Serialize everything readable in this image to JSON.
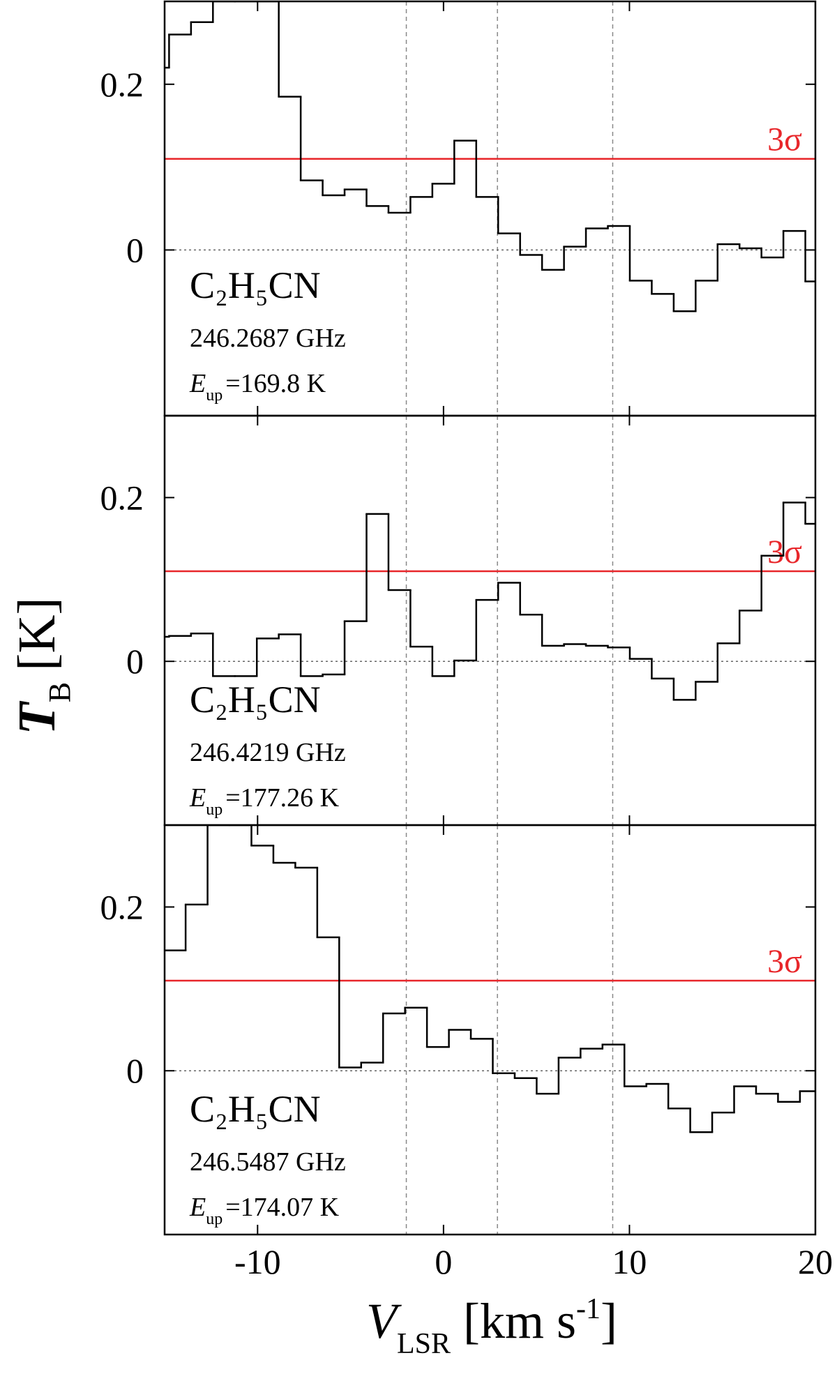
{
  "chart_data": {
    "type": "step",
    "x_label": {
      "symbol": "V",
      "sub": "LSR",
      "text": "[km s",
      "sup": "-1",
      "end": "]"
    },
    "y_label": {
      "symbol": "T",
      "sub": "B",
      "text": "[K]"
    },
    "xlim": [
      -15,
      20
    ],
    "xticks": [
      -10,
      0,
      10,
      20
    ],
    "panels": [
      {
        "species": "C₂H₅CN",
        "frequency": "246.2687 GHz",
        "energy": {
          "symbol": "E",
          "sub": "up",
          "text": "=169.8 K"
        },
        "color": "#000000",
        "bins": [
          -15,
          -14.76,
          -13.58,
          -12.4,
          -11.22,
          -10.04,
          -8.86,
          -7.68,
          -6.5,
          -5.32,
          -4.14,
          -2.96,
          -1.78,
          -0.6,
          0.58,
          1.76,
          2.94,
          4.12,
          5.3,
          6.48,
          7.66,
          8.84,
          10.02,
          11.2,
          12.38,
          13.56,
          14.74,
          15.92,
          17.1,
          18.28,
          19.46,
          20
        ],
        "values": [
          0.22,
          0.26,
          0.275,
          0.3,
          0.3,
          0.3,
          0.185,
          0.084,
          0.066,
          0.073,
          0.053,
          0.045,
          0.064,
          0.08,
          0.132,
          0.064,
          0.02,
          -0.006,
          -0.024,
          0.004,
          0.026,
          0.029,
          -0.037,
          -0.053,
          -0.074,
          -0.037,
          0.007,
          0.002,
          -0.009,
          0.023,
          -0.038
        ],
        "ylim": [
          -0.2,
          0.3
        ],
        "yticks": [
          0,
          0.2
        ],
        "threshold": 0.11,
        "threshold_label": "3σ",
        "threshold_color": "#e8262a",
        "vlines": [
          -2,
          2.9,
          9.1
        ],
        "zero_line": 0
      },
      {
        "species": "C₂H₅CN",
        "frequency": "246.4219 GHz",
        "energy": {
          "symbol": "E",
          "sub": "up",
          "text": "=177.26 K"
        },
        "color": "#000000",
        "bins": [
          -15,
          -14.76,
          -13.58,
          -12.4,
          -11.22,
          -10.04,
          -8.86,
          -7.68,
          -6.5,
          -5.32,
          -4.14,
          -2.96,
          -1.78,
          -0.6,
          0.58,
          1.76,
          2.94,
          4.12,
          5.3,
          6.48,
          7.66,
          8.84,
          10.02,
          11.2,
          12.38,
          13.56,
          14.74,
          15.92,
          17.1,
          18.28,
          19.46,
          20
        ],
        "values": [
          0.03,
          0.031,
          0.034,
          -0.018,
          -0.018,
          0.028,
          0.033,
          -0.018,
          -0.016,
          0.049,
          0.18,
          0.087,
          0.018,
          -0.018,
          0.001,
          0.075,
          0.096,
          0.057,
          0.019,
          0.021,
          0.019,
          0.017,
          0.003,
          -0.021,
          -0.047,
          -0.025,
          0.022,
          0.062,
          0.129,
          0.194,
          0.168
        ],
        "ylim": [
          -0.2,
          0.3
        ],
        "yticks": [
          0,
          0.2
        ],
        "threshold": 0.11,
        "threshold_label": "3σ",
        "threshold_color": "#e8262a",
        "vlines": [
          -2,
          2.9,
          9.1
        ],
        "zero_line": 0
      },
      {
        "species": "C₂H₅CN",
        "frequency": "246.5487 GHz",
        "energy": {
          "symbol": "E",
          "sub": "up",
          "text": "=174.07 K"
        },
        "color": "#000000",
        "bins": [
          -15,
          -13.87,
          -12.69,
          -11.51,
          -10.33,
          -9.15,
          -7.97,
          -6.79,
          -5.61,
          -4.43,
          -3.25,
          -2.07,
          -0.89,
          0.29,
          1.47,
          2.65,
          3.83,
          5.01,
          6.19,
          7.37,
          8.55,
          9.73,
          10.91,
          12.09,
          13.27,
          14.45,
          15.63,
          16.81,
          17.99,
          19.17,
          20
        ],
        "values": [
          0.147,
          0.203,
          0.3,
          0.3,
          0.275,
          0.254,
          0.248,
          0.163,
          0.004,
          0.01,
          0.07,
          0.077,
          0.029,
          0.05,
          0.039,
          -0.003,
          -0.009,
          -0.028,
          0.016,
          0.027,
          0.032,
          -0.019,
          -0.016,
          -0.046,
          -0.075,
          -0.051,
          -0.019,
          -0.028,
          -0.038,
          -0.025
        ],
        "ylim": [
          -0.2,
          0.3
        ],
        "yticks": [
          0,
          0.2
        ],
        "threshold": 0.11,
        "threshold_label": "3σ",
        "threshold_color": "#e8262a",
        "vlines": [
          -2,
          2.9,
          9.1
        ],
        "zero_line": 0
      }
    ]
  }
}
